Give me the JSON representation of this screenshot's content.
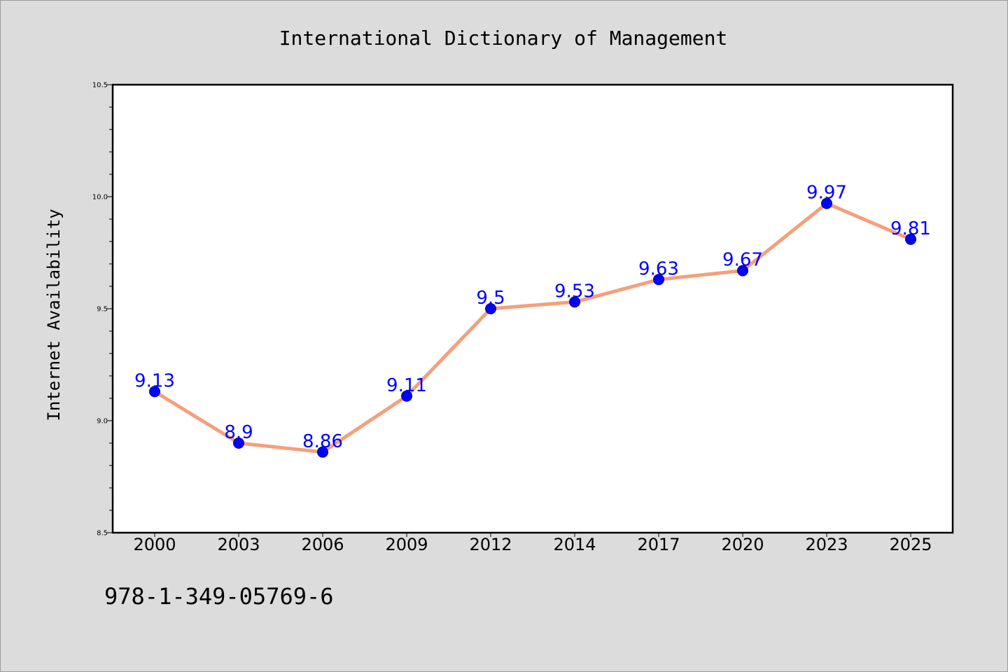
{
  "chart_data": {
    "type": "line",
    "title": "International Dictionary of Management",
    "xlabel": "",
    "ylabel": "Internet Availability",
    "categories": [
      "2000",
      "2003",
      "2006",
      "2009",
      "2012",
      "2014",
      "2017",
      "2020",
      "2023",
      "2025"
    ],
    "series": [
      {
        "values": [
          9.13,
          8.9,
          8.86,
          9.11,
          9.5,
          9.53,
          9.63,
          9.67,
          9.97,
          9.81
        ],
        "data_labels": [
          "9.13",
          "8.9",
          "8.86",
          "9.11",
          "9.5",
          "9.53",
          "9.63",
          "9.67",
          "9.97",
          "9.81"
        ]
      }
    ],
    "ylim": [
      8.5,
      10.5
    ],
    "yticks": [
      "8.5",
      "9.0",
      "9.5",
      "10.0",
      "10.5"
    ],
    "grid": false,
    "line_color": "#f4a07c",
    "marker_color": "#0000ff",
    "label_color": "#0000ff"
  },
  "footer": {
    "isbn": "978-1-349-05769-6"
  }
}
